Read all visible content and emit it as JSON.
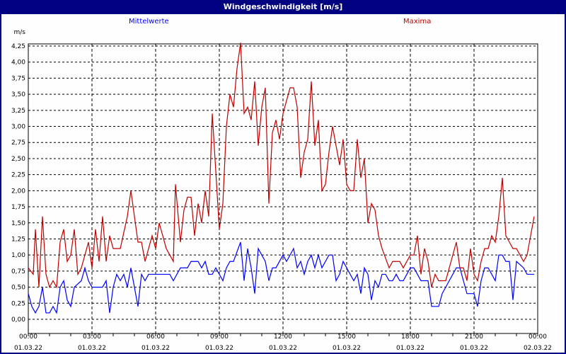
{
  "window": {
    "title": "Windgeschwindigkeit [m/s]"
  },
  "colors": {
    "titlebar": "#000080",
    "mean": "#0000ff",
    "max": "#c00000"
  },
  "chart_data": {
    "type": "line",
    "title": "Windgeschwindigkeit [m/s]",
    "ylabel": "m/s",
    "xlabel": "",
    "ylim": [
      0,
      4.25
    ],
    "xlim_minutes": [
      0,
      1440
    ],
    "grid": true,
    "legend_placement": "top",
    "yticks": [
      "0,00",
      "0,25",
      "0,50",
      "0,75",
      "1,00",
      "1,25",
      "1,50",
      "1,75",
      "2,00",
      "2,25",
      "2,50",
      "2,75",
      "3,00",
      "3,25",
      "3,50",
      "3,75",
      "4,00",
      "4,25"
    ],
    "xticks": [
      {
        "time": "00:00",
        "date": "01.03.22"
      },
      {
        "time": "03:00",
        "date": "01.03.22"
      },
      {
        "time": "06:00",
        "date": "01.03.22"
      },
      {
        "time": "09:00",
        "date": "01.03.22"
      },
      {
        "time": "12:00",
        "date": "01.03.22"
      },
      {
        "time": "15:00",
        "date": "01.03.22"
      },
      {
        "time": "18:00",
        "date": "01.03.22"
      },
      {
        "time": "21:00",
        "date": "01.03.22"
      },
      {
        "time": "00:00",
        "date": "02.03.22"
      }
    ],
    "x_unit": "minutes since 01.03.22 00:00",
    "series": [
      {
        "name": "Mittelwerte",
        "color": "#0000ff",
        "points": [
          [
            0,
            0.4
          ],
          [
            10,
            0.2
          ],
          [
            20,
            0.1
          ],
          [
            30,
            0.2
          ],
          [
            40,
            0.5
          ],
          [
            50,
            0.1
          ],
          [
            60,
            0.1
          ],
          [
            70,
            0.2
          ],
          [
            80,
            0.1
          ],
          [
            90,
            0.5
          ],
          [
            100,
            0.6
          ],
          [
            110,
            0.3
          ],
          [
            120,
            0.2
          ],
          [
            130,
            0.5
          ],
          [
            150,
            0.6
          ],
          [
            160,
            0.8
          ],
          [
            170,
            0.6
          ],
          [
            180,
            0.5
          ],
          [
            210,
            0.5
          ],
          [
            220,
            0.6
          ],
          [
            230,
            0.1
          ],
          [
            240,
            0.5
          ],
          [
            250,
            0.7
          ],
          [
            260,
            0.6
          ],
          [
            270,
            0.7
          ],
          [
            280,
            0.5
          ],
          [
            290,
            0.8
          ],
          [
            300,
            0.5
          ],
          [
            310,
            0.2
          ],
          [
            320,
            0.7
          ],
          [
            330,
            0.6
          ],
          [
            340,
            0.7
          ],
          [
            400,
            0.7
          ],
          [
            410,
            0.6
          ],
          [
            430,
            0.8
          ],
          [
            450,
            0.8
          ],
          [
            460,
            0.9
          ],
          [
            480,
            0.9
          ],
          [
            490,
            0.8
          ],
          [
            500,
            0.9
          ],
          [
            510,
            0.7
          ],
          [
            520,
            0.7
          ],
          [
            530,
            0.8
          ],
          [
            540,
            0.7
          ],
          [
            550,
            0.6
          ],
          [
            560,
            0.8
          ],
          [
            570,
            0.9
          ],
          [
            580,
            0.9
          ],
          [
            600,
            1.2
          ],
          [
            610,
            0.6
          ],
          [
            620,
            1.1
          ],
          [
            630,
            0.8
          ],
          [
            640,
            0.4
          ],
          [
            650,
            1.1
          ],
          [
            660,
            1.0
          ],
          [
            670,
            0.9
          ],
          [
            680,
            0.6
          ],
          [
            690,
            0.8
          ],
          [
            700,
            0.8
          ],
          [
            720,
            1.0
          ],
          [
            730,
            0.9
          ],
          [
            750,
            1.1
          ],
          [
            760,
            0.8
          ],
          [
            770,
            0.9
          ],
          [
            780,
            0.7
          ],
          [
            790,
            0.9
          ],
          [
            800,
            1.0
          ],
          [
            810,
            0.8
          ],
          [
            820,
            1.0
          ],
          [
            830,
            0.8
          ],
          [
            850,
            1.0
          ],
          [
            860,
            1.0
          ],
          [
            870,
            0.6
          ],
          [
            880,
            0.7
          ],
          [
            890,
            0.9
          ],
          [
            900,
            0.8
          ],
          [
            910,
            0.7
          ],
          [
            920,
            0.6
          ],
          [
            930,
            0.7
          ],
          [
            940,
            0.4
          ],
          [
            950,
            0.8
          ],
          [
            960,
            0.7
          ],
          [
            970,
            0.3
          ],
          [
            980,
            0.6
          ],
          [
            990,
            0.5
          ],
          [
            1000,
            0.7
          ],
          [
            1010,
            0.7
          ],
          [
            1020,
            0.6
          ],
          [
            1030,
            0.6
          ],
          [
            1040,
            0.7
          ],
          [
            1050,
            0.6
          ],
          [
            1060,
            0.6
          ],
          [
            1070,
            0.7
          ],
          [
            1080,
            0.8
          ],
          [
            1090,
            0.8
          ],
          [
            1100,
            0.7
          ],
          [
            1110,
            0.6
          ],
          [
            1130,
            0.6
          ],
          [
            1140,
            0.2
          ],
          [
            1160,
            0.2
          ],
          [
            1170,
            0.4
          ],
          [
            1190,
            0.6
          ],
          [
            1210,
            0.8
          ],
          [
            1220,
            0.8
          ],
          [
            1230,
            0.6
          ],
          [
            1240,
            0.4
          ],
          [
            1260,
            0.4
          ],
          [
            1270,
            0.2
          ],
          [
            1280,
            0.6
          ],
          [
            1290,
            0.8
          ],
          [
            1300,
            0.8
          ],
          [
            1310,
            0.7
          ],
          [
            1320,
            0.6
          ],
          [
            1330,
            1.0
          ],
          [
            1340,
            1.0
          ],
          [
            1350,
            0.9
          ],
          [
            1360,
            0.9
          ],
          [
            1370,
            0.3
          ],
          [
            1380,
            0.9
          ],
          [
            1400,
            0.8
          ],
          [
            1410,
            0.7
          ],
          [
            1430,
            0.7
          ]
        ]
      },
      {
        "name": "Maxima",
        "color": "#c00000",
        "points": [
          [
            0,
            0.8
          ],
          [
            14,
            0.7
          ],
          [
            20,
            1.4
          ],
          [
            30,
            0.5
          ],
          [
            40,
            1.6
          ],
          [
            50,
            0.7
          ],
          [
            60,
            0.5
          ],
          [
            70,
            0.6
          ],
          [
            80,
            0.5
          ],
          [
            90,
            1.2
          ],
          [
            100,
            1.4
          ],
          [
            110,
            0.9
          ],
          [
            120,
            1.0
          ],
          [
            130,
            1.4
          ],
          [
            140,
            0.7
          ],
          [
            150,
            0.8
          ],
          [
            170,
            1.2
          ],
          [
            180,
            0.8
          ],
          [
            190,
            1.4
          ],
          [
            200,
            0.9
          ],
          [
            210,
            1.6
          ],
          [
            220,
            0.9
          ],
          [
            230,
            1.3
          ],
          [
            240,
            1.1
          ],
          [
            260,
            1.1
          ],
          [
            280,
            1.6
          ],
          [
            290,
            2.0
          ],
          [
            310,
            1.2
          ],
          [
            320,
            1.2
          ],
          [
            330,
            0.9
          ],
          [
            350,
            1.3
          ],
          [
            360,
            1.1
          ],
          [
            370,
            1.5
          ],
          [
            390,
            1.1
          ],
          [
            410,
            0.9
          ],
          [
            416,
            2.1
          ],
          [
            430,
            1.2
          ],
          [
            440,
            1.7
          ],
          [
            450,
            1.9
          ],
          [
            460,
            1.9
          ],
          [
            470,
            1.3
          ],
          [
            480,
            1.8
          ],
          [
            490,
            1.5
          ],
          [
            500,
            2.0
          ],
          [
            510,
            1.6
          ],
          [
            520,
            3.2
          ],
          [
            530,
            2.3
          ],
          [
            540,
            1.4
          ],
          [
            550,
            1.8
          ],
          [
            560,
            3.0
          ],
          [
            570,
            3.5
          ],
          [
            580,
            3.3
          ],
          [
            590,
            3.9
          ],
          [
            600,
            4.3
          ],
          [
            610,
            3.2
          ],
          [
            620,
            3.3
          ],
          [
            630,
            3.1
          ],
          [
            640,
            3.7
          ],
          [
            650,
            2.7
          ],
          [
            660,
            3.3
          ],
          [
            670,
            3.6
          ],
          [
            680,
            1.8
          ],
          [
            690,
            2.9
          ],
          [
            700,
            3.1
          ],
          [
            710,
            2.8
          ],
          [
            720,
            3.2
          ],
          [
            730,
            3.4
          ],
          [
            740,
            3.6
          ],
          [
            750,
            3.6
          ],
          [
            760,
            3.3
          ],
          [
            770,
            2.2
          ],
          [
            780,
            2.6
          ],
          [
            790,
            2.8
          ],
          [
            800,
            3.7
          ],
          [
            810,
            2.7
          ],
          [
            820,
            3.1
          ],
          [
            830,
            2.0
          ],
          [
            840,
            2.1
          ],
          [
            850,
            2.6
          ],
          [
            860,
            3.0
          ],
          [
            870,
            2.7
          ],
          [
            880,
            2.4
          ],
          [
            890,
            2.8
          ],
          [
            900,
            2.1
          ],
          [
            910,
            2.0
          ],
          [
            920,
            2.0
          ],
          [
            930,
            2.8
          ],
          [
            940,
            2.2
          ],
          [
            950,
            2.5
          ],
          [
            960,
            1.5
          ],
          [
            970,
            1.8
          ],
          [
            980,
            1.7
          ],
          [
            990,
            1.3
          ],
          [
            1000,
            1.1
          ],
          [
            1020,
            0.8
          ],
          [
            1030,
            0.9
          ],
          [
            1050,
            0.9
          ],
          [
            1060,
            0.8
          ],
          [
            1080,
            1.0
          ],
          [
            1090,
            1.0
          ],
          [
            1100,
            1.3
          ],
          [
            1110,
            0.7
          ],
          [
            1120,
            1.1
          ],
          [
            1130,
            0.9
          ],
          [
            1140,
            0.5
          ],
          [
            1150,
            0.7
          ],
          [
            1160,
            0.6
          ],
          [
            1180,
            0.6
          ],
          [
            1190,
            0.8
          ],
          [
            1210,
            1.2
          ],
          [
            1220,
            0.8
          ],
          [
            1230,
            0.8
          ],
          [
            1240,
            0.6
          ],
          [
            1250,
            1.1
          ],
          [
            1260,
            0.7
          ],
          [
            1270,
            0.6
          ],
          [
            1280,
            0.9
          ],
          [
            1290,
            1.1
          ],
          [
            1300,
            1.1
          ],
          [
            1310,
            1.3
          ],
          [
            1320,
            1.2
          ],
          [
            1330,
            1.6
          ],
          [
            1340,
            2.2
          ],
          [
            1350,
            1.3
          ],
          [
            1360,
            1.2
          ],
          [
            1370,
            1.1
          ],
          [
            1380,
            1.1
          ],
          [
            1390,
            1.0
          ],
          [
            1400,
            0.9
          ],
          [
            1410,
            1.0
          ],
          [
            1420,
            1.3
          ],
          [
            1430,
            1.6
          ]
        ]
      }
    ]
  }
}
